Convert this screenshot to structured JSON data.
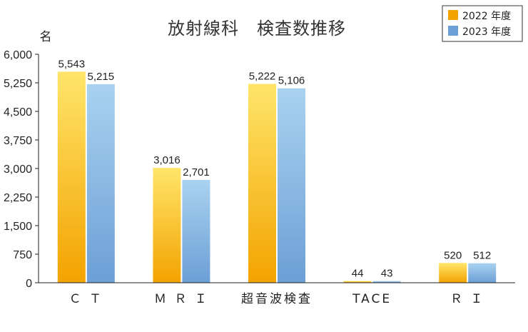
{
  "chart_data": {
    "type": "bar",
    "title": "放射線科　検査数推移",
    "ylabel": "名",
    "categories": [
      "Ｃ Ｔ",
      "Ｍ Ｒ Ｉ",
      "超音波検査",
      "TACE",
      "Ｒ Ｉ"
    ],
    "series": [
      {
        "name": "2022 年度",
        "values": [
          5543,
          3016,
          5222,
          44,
          520
        ],
        "labels": [
          "5,543",
          "3,016",
          "5,222",
          "44",
          "520"
        ],
        "color": "#f3a300"
      },
      {
        "name": "2023 年度",
        "values": [
          5215,
          2701,
          5106,
          43,
          512
        ],
        "labels": [
          "5,215",
          "2,701",
          "5,106",
          "43",
          "512"
        ],
        "color": "#6c9fd6"
      }
    ],
    "ylim": [
      0,
      6000
    ],
    "yticks": [
      0,
      750,
      1500,
      2250,
      3000,
      3750,
      4500,
      5250,
      6000
    ],
    "ytick_labels": [
      "0",
      "750",
      "1,500",
      "2,250",
      "3,000",
      "3,750",
      "4,500",
      "5,250",
      "6,000"
    ],
    "grid": false,
    "legend": "top-right"
  }
}
